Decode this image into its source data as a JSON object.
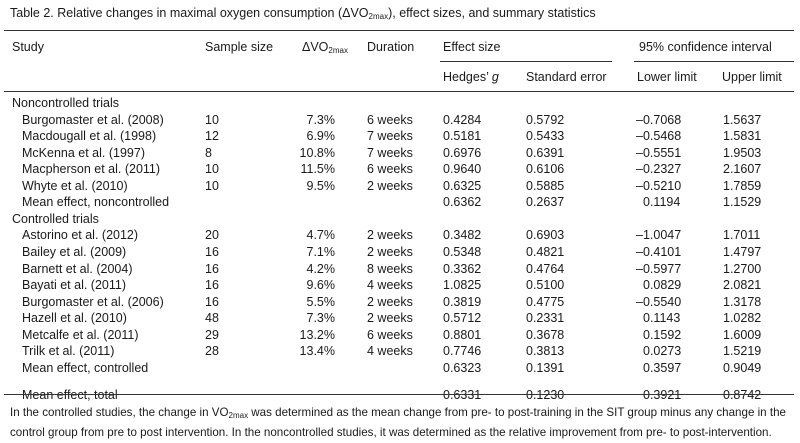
{
  "caption": {
    "pre": "Table 2.  Relative changes in maximal oxygen consumption (ΔVO",
    "sub": "2max",
    "post": "), effect sizes, and summary statistics"
  },
  "headers": {
    "study": "Study",
    "sample_size": "Sample size",
    "dvo2_pre": "ΔVO",
    "dvo2_sub": "2max",
    "duration": "Duration",
    "effect_size": "Effect size",
    "ci": "95% confidence interval",
    "hedges": "Hedges’",
    "hedges_g": "g",
    "se": "Standard error",
    "lower": "Lower limit",
    "upper": "Upper limit"
  },
  "sections": [
    {
      "title": "Noncontrolled trials",
      "rows": [
        {
          "study": "Burgomaster et al. (2008)",
          "n": "10",
          "dvo2": "7.3%",
          "duration": "6 weeks",
          "g": "0.4284",
          "se": "0.5792",
          "lower": "–0.7068",
          "upper": "1.5637"
        },
        {
          "study": "Macdougall et al. (1998)",
          "n": "12",
          "dvo2": "6.9%",
          "duration": "7 weeks",
          "g": "0.5181",
          "se": "0.5433",
          "lower": "–0.5468",
          "upper": "1.5831"
        },
        {
          "study": "McKenna et al. (1997)",
          "n": "8",
          "dvo2": "10.8%",
          "duration": "7 weeks",
          "g": "0.6976",
          "se": "0.6391",
          "lower": "–0.5551",
          "upper": "1.9503"
        },
        {
          "study": "Macpherson et al. (2011)",
          "n": "10",
          "dvo2": "11.5%",
          "duration": "6 weeks",
          "g": "0.9640",
          "se": "0.6106",
          "lower": "–0.2327",
          "upper": "2.1607"
        },
        {
          "study": "Whyte et al. (2010)",
          "n": "10",
          "dvo2": "9.5%",
          "duration": "2 weeks",
          "g": "0.6325",
          "se": "0.5885",
          "lower": "–0.5210",
          "upper": "1.7859"
        }
      ],
      "mean": {
        "label": "Mean effect, noncontrolled",
        "g": "0.6362",
        "se": "0.2637",
        "lower": "0.1194",
        "upper": "1.1529"
      }
    },
    {
      "title": "Controlled trials",
      "rows": [
        {
          "study": "Astorino et al. (2012)",
          "n": "20",
          "dvo2": "4.7%",
          "duration": "2 weeks",
          "g": "0.3482",
          "se": "0.6903",
          "lower": "–1.0047",
          "upper": "1.7011"
        },
        {
          "study": "Bailey et al. (2009)",
          "n": "16",
          "dvo2": "7.1%",
          "duration": "2 weeks",
          "g": "0.5348",
          "se": "0.4821",
          "lower": "–0.4101",
          "upper": "1.4797"
        },
        {
          "study": "Barnett et al. (2004)",
          "n": "16",
          "dvo2": "4.2%",
          "duration": "8 weeks",
          "g": "0.3362",
          "se": "0.4764",
          "lower": "–0.5977",
          "upper": "1.2700"
        },
        {
          "study": "Bayati et al. (2011)",
          "n": "16",
          "dvo2": "9.6%",
          "duration": "4 weeks",
          "g": "1.0825",
          "se": "0.5100",
          "lower": "0.0829",
          "upper": "2.0821"
        },
        {
          "study": "Burgomaster et al. (2006)",
          "n": "16",
          "dvo2": "5.5%",
          "duration": "2 weeks",
          "g": "0.3819",
          "se": "0.4775",
          "lower": "–0.5540",
          "upper": "1.3178"
        },
        {
          "study": "Hazell et al. (2010)",
          "n": "48",
          "dvo2": "7.3%",
          "duration": "2 weeks",
          "g": "0.5712",
          "se": "0.2331",
          "lower": "0.1143",
          "upper": "1.0282"
        },
        {
          "study": "Metcalfe et al. (2011)",
          "n": "29",
          "dvo2": "13.2%",
          "duration": "6 weeks",
          "g": "0.8801",
          "se": "0.3678",
          "lower": "0.1592",
          "upper": "1.6009"
        },
        {
          "study": "Trilk et al. (2011)",
          "n": "28",
          "dvo2": "13.4%",
          "duration": "4 weeks",
          "g": "0.7746",
          "se": "0.3813",
          "lower": "0.0273",
          "upper": "1.5219"
        }
      ],
      "mean": {
        "label": "Mean effect, controlled",
        "g": "0.6323",
        "se": "0.1391",
        "lower": "0.3597",
        "upper": "0.9049"
      }
    }
  ],
  "total": {
    "label": "Mean effect, total",
    "g": "0.6331",
    "se": "0.1230",
    "lower": "0.3921",
    "upper": "0.8742"
  },
  "footnote": {
    "pre": "In the controlled studies, the change in VO",
    "sub": "2max",
    "post": " was determined as the mean change from pre- to post-training in the SIT group minus any change in the control group from pre to post intervention. In the noncontrolled studies, it was determined as the relative improvement from pre- to post-intervention."
  }
}
